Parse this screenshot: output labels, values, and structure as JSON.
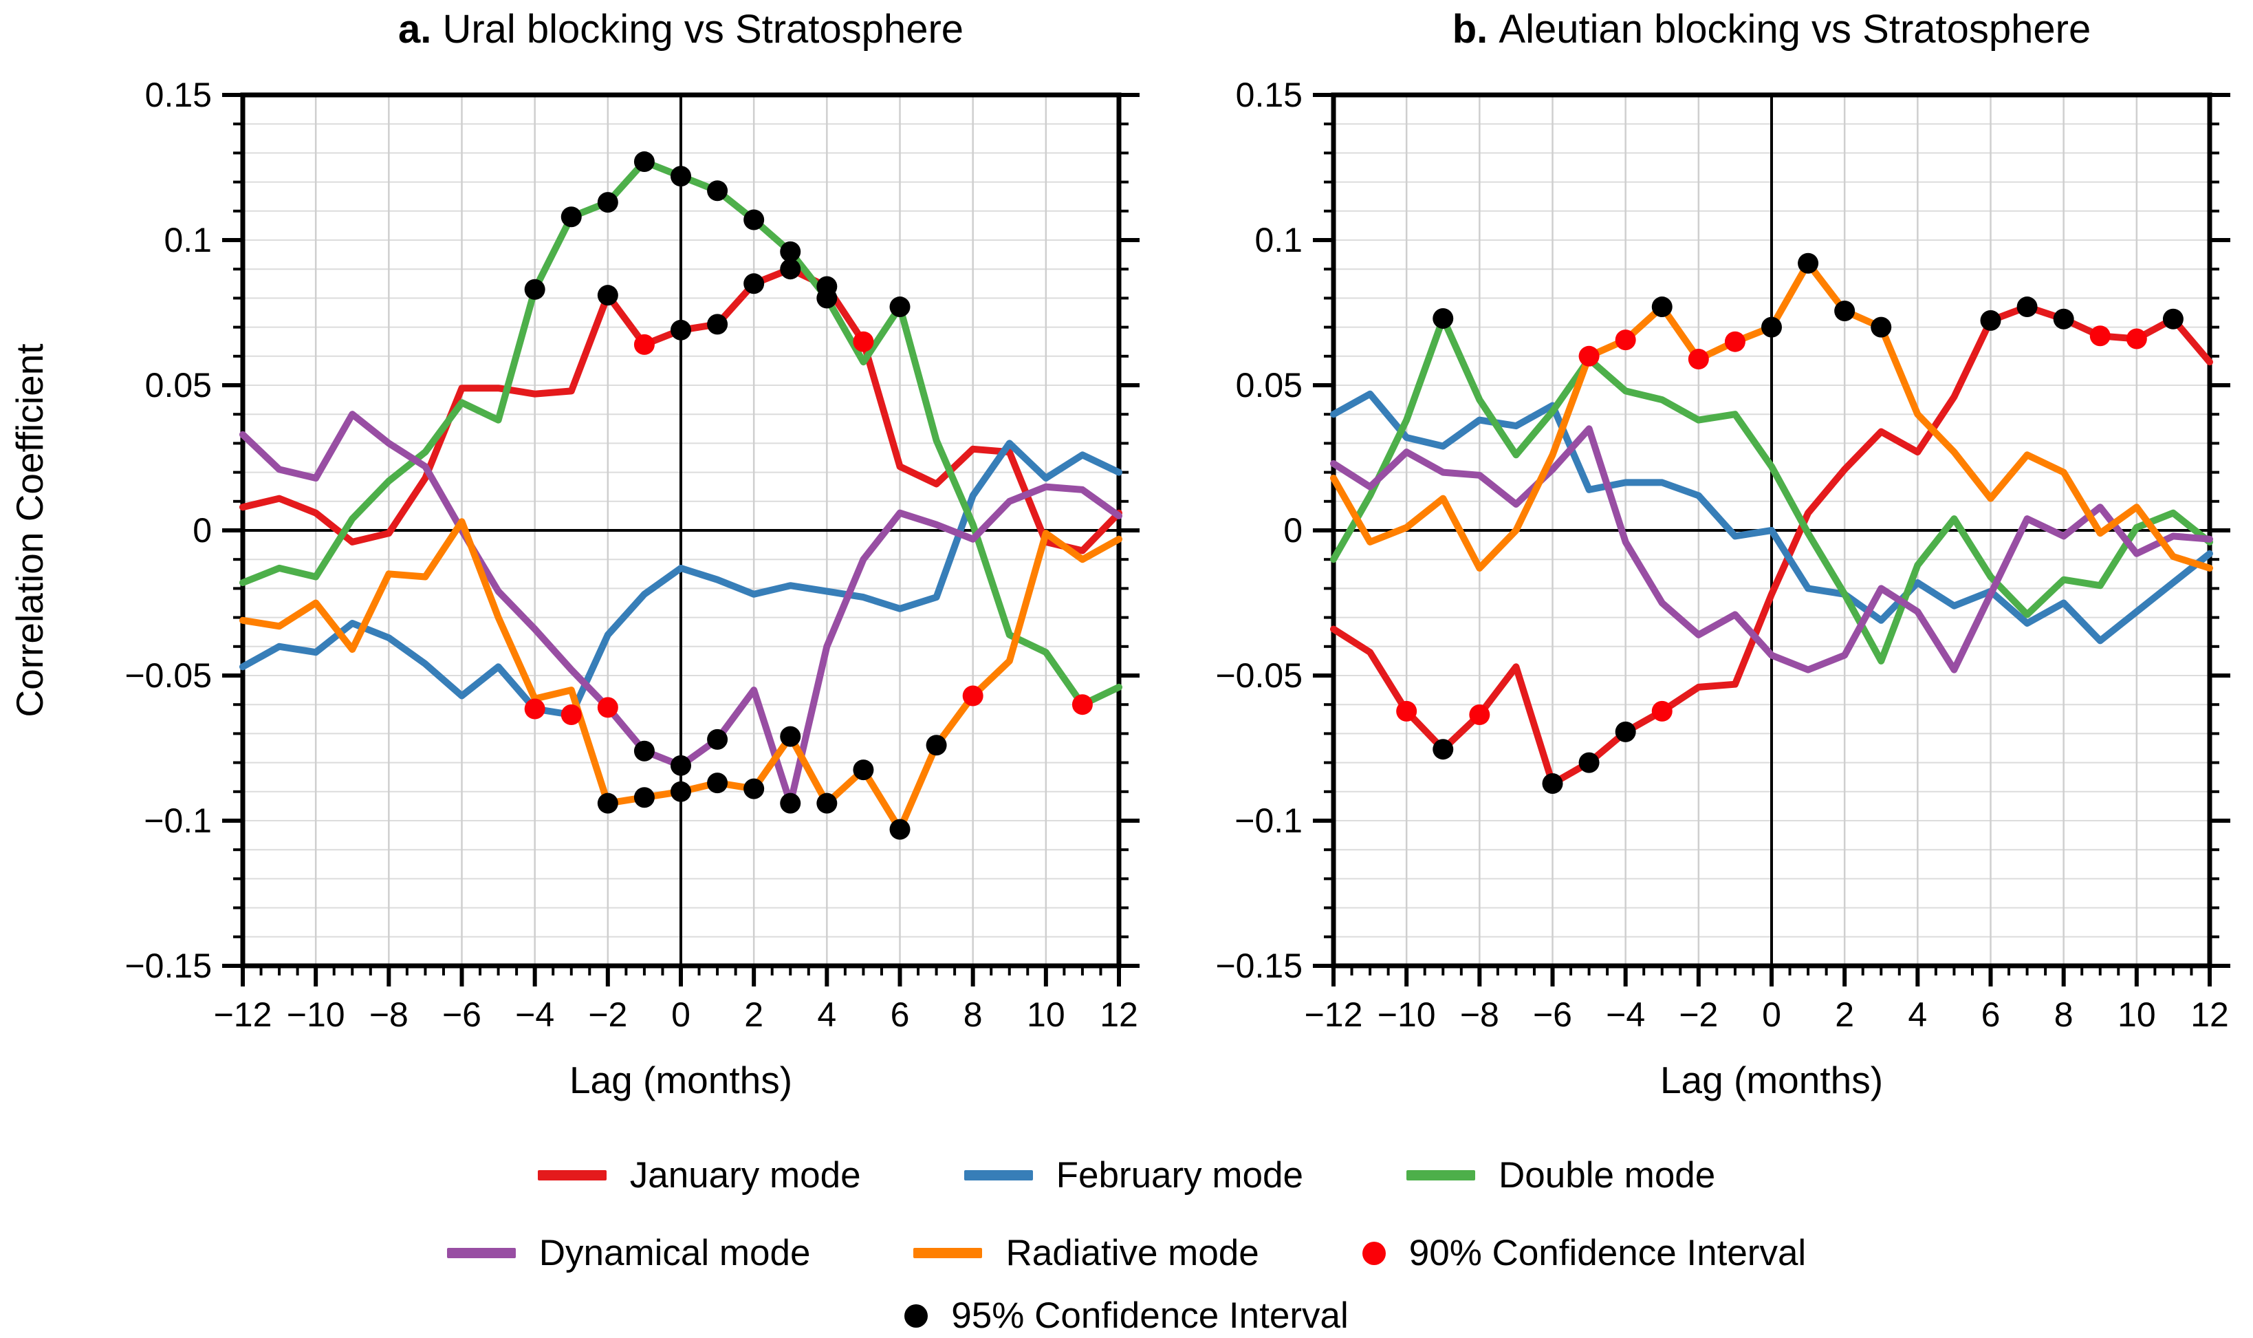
{
  "figure": {
    "ylabel": "Correlation Coefficient",
    "xlabel": "Lag (months)",
    "y_tick_labels": [
      "0.15",
      "0.1",
      "0.05",
      "0",
      "−0.05",
      "−0.1",
      "−0.15"
    ],
    "x_tick_labels": [
      "−12",
      "−10",
      "−8",
      "−6",
      "−4",
      "−2",
      "0",
      "2",
      "4",
      "6",
      "8",
      "10",
      "12"
    ],
    "colors": {
      "january": "#e41a1c",
      "february": "#377eb8",
      "double": "#4daf4a",
      "dynamical": "#984ea3",
      "radiative": "#ff7f00",
      "ci90": "#fb0007",
      "ci95": "#000000"
    },
    "legend": {
      "january": "January mode",
      "february": "February mode",
      "double": "Double mode",
      "dynamical": "Dynamical mode",
      "radiative": "Radiative mode",
      "ci90": "90% Confidence Interval",
      "ci95": "95% Confidence Interval"
    }
  },
  "chart_data": [
    {
      "type": "line",
      "panel_label": "a.",
      "title": "Ural blocking vs Stratosphere",
      "xlabel": "Lag (months)",
      "ylabel": "Correlation Coefficient",
      "xlim": [
        -12,
        12
      ],
      "ylim": [
        -0.15,
        0.15
      ],
      "x": [
        -12,
        -11,
        -10,
        -9,
        -8,
        -7,
        -6,
        -5,
        -4,
        -3,
        -2,
        -1,
        0,
        1,
        2,
        3,
        4,
        5,
        6,
        7,
        8,
        9,
        10,
        11,
        12
      ],
      "series": [
        {
          "key": "january",
          "name": "January mode",
          "values": [
            0.008,
            0.011,
            0.006,
            -0.004,
            -0.001,
            0.018,
            0.049,
            0.049,
            0.047,
            0.048,
            0.081,
            0.064,
            0.069,
            0.071,
            0.085,
            0.09,
            0.084,
            0.065,
            0.022,
            0.016,
            0.028,
            0.027,
            -0.004,
            -0.007,
            0.006
          ],
          "dots95": [
            -2,
            0,
            1,
            2,
            3,
            4
          ],
          "dots90": [
            -1,
            5
          ]
        },
        {
          "key": "february",
          "name": "February mode",
          "values": [
            -0.047,
            -0.04,
            -0.042,
            -0.032,
            -0.037,
            -0.046,
            -0.057,
            -0.047,
            -0.0615,
            -0.0635,
            -0.036,
            -0.022,
            -0.013,
            -0.017,
            -0.022,
            -0.019,
            -0.021,
            -0.023,
            -0.027,
            -0.023,
            0.012,
            0.03,
            0.018,
            0.026,
            0.02
          ],
          "dots95": [],
          "dots90": [
            -4,
            -3
          ]
        },
        {
          "key": "double",
          "name": "Double mode",
          "values": [
            -0.018,
            -0.013,
            -0.016,
            0.004,
            0.017,
            0.027,
            0.044,
            0.038,
            0.083,
            0.108,
            0.113,
            0.127,
            0.122,
            0.117,
            0.107,
            0.096,
            0.08,
            0.058,
            0.077,
            0.031,
            0.002,
            -0.036,
            -0.042,
            -0.06,
            -0.054
          ],
          "dots95": [
            -4,
            -3,
            -2,
            -1,
            0,
            1,
            2,
            3,
            4,
            6
          ],
          "dots90": [
            11
          ]
        },
        {
          "key": "dynamical",
          "name": "Dynamical mode",
          "values": [
            0.033,
            0.021,
            0.018,
            0.04,
            0.03,
            0.022,
            0.0,
            -0.021,
            -0.034,
            -0.048,
            -0.061,
            -0.076,
            -0.081,
            -0.072,
            -0.055,
            -0.094,
            -0.04,
            -0.01,
            0.006,
            0.002,
            -0.003,
            0.01,
            0.015,
            0.014,
            0.005
          ],
          "dots95": [
            -1,
            0,
            1,
            3
          ],
          "dots90": [
            -2
          ]
        },
        {
          "key": "radiative",
          "name": "Radiative mode",
          "values": [
            -0.031,
            -0.033,
            -0.025,
            -0.041,
            -0.015,
            -0.016,
            0.003,
            -0.03,
            -0.058,
            -0.055,
            -0.094,
            -0.092,
            -0.09,
            -0.087,
            -0.089,
            -0.071,
            -0.094,
            -0.0825,
            -0.103,
            -0.074,
            -0.057,
            -0.045,
            -0.001,
            -0.01,
            -0.003
          ],
          "dots95": [
            -2,
            -1,
            0,
            1,
            2,
            3,
            4,
            5,
            6,
            7
          ],
          "dots90": [
            8
          ]
        }
      ]
    },
    {
      "type": "line",
      "panel_label": "b.",
      "title": "Aleutian blocking vs Stratosphere",
      "xlabel": "Lag (months)",
      "ylabel": "Correlation Coefficient",
      "xlim": [
        -12,
        12
      ],
      "ylim": [
        -0.15,
        0.15
      ],
      "x": [
        -12,
        -11,
        -10,
        -9,
        -8,
        -7,
        -6,
        -5,
        -4,
        -3,
        -2,
        -1,
        0,
        1,
        2,
        3,
        4,
        5,
        6,
        7,
        8,
        9,
        10,
        11,
        12
      ],
      "series": [
        {
          "key": "january",
          "name": "January mode",
          "values": [
            -0.034,
            -0.042,
            -0.0623,
            -0.0754,
            -0.0635,
            -0.047,
            -0.0872,
            -0.08,
            -0.0694,
            -0.0623,
            -0.054,
            -0.053,
            -0.022,
            0.006,
            0.021,
            0.034,
            0.027,
            0.046,
            0.0723,
            0.077,
            0.0728,
            0.067,
            0.066,
            0.0728,
            0.058
          ],
          "dots95": [
            -9,
            -6,
            -5,
            -4,
            6,
            7,
            8,
            11
          ],
          "dots90": [
            -10,
            -8,
            -3,
            9,
            10
          ]
        },
        {
          "key": "february",
          "name": "February mode",
          "values": [
            0.04,
            0.047,
            0.032,
            0.029,
            0.038,
            0.036,
            0.043,
            0.014,
            0.0165,
            0.0165,
            0.012,
            -0.002,
            0.0,
            -0.02,
            -0.022,
            -0.031,
            -0.018,
            -0.026,
            -0.021,
            -0.032,
            -0.025,
            -0.038,
            -0.028,
            -0.018,
            -0.008
          ],
          "dots95": [],
          "dots90": []
        },
        {
          "key": "double",
          "name": "Double mode",
          "values": [
            -0.01,
            0.012,
            0.038,
            0.073,
            0.045,
            0.026,
            0.041,
            0.059,
            0.048,
            0.045,
            0.038,
            0.04,
            0.022,
            -0.001,
            -0.022,
            -0.045,
            -0.012,
            0.004,
            -0.016,
            -0.029,
            -0.017,
            -0.019,
            0.001,
            0.006,
            -0.004
          ],
          "dots95": [
            -9
          ],
          "dots90": []
        },
        {
          "key": "dynamical",
          "name": "Dynamical mode",
          "values": [
            0.023,
            0.015,
            0.027,
            0.02,
            0.019,
            0.009,
            0.021,
            0.035,
            -0.004,
            -0.025,
            -0.036,
            -0.029,
            -0.043,
            -0.048,
            -0.043,
            -0.02,
            -0.028,
            -0.048,
            -0.022,
            0.004,
            -0.002,
            0.008,
            -0.008,
            -0.002,
            -0.003
          ],
          "dots95": [],
          "dots90": []
        },
        {
          "key": "radiative",
          "name": "Radiative mode",
          "values": [
            0.018,
            -0.004,
            0.001,
            0.011,
            -0.013,
            0.0,
            0.026,
            0.06,
            0.0656,
            0.077,
            0.059,
            0.065,
            0.07,
            0.092,
            0.0756,
            0.07,
            0.04,
            0.027,
            0.011,
            0.026,
            0.02,
            -0.001,
            0.008,
            -0.009,
            -0.013
          ],
          "dots95": [
            -3,
            0,
            1,
            2,
            3
          ],
          "dots90": [
            -5,
            -4,
            -2,
            -1
          ]
        }
      ]
    }
  ]
}
